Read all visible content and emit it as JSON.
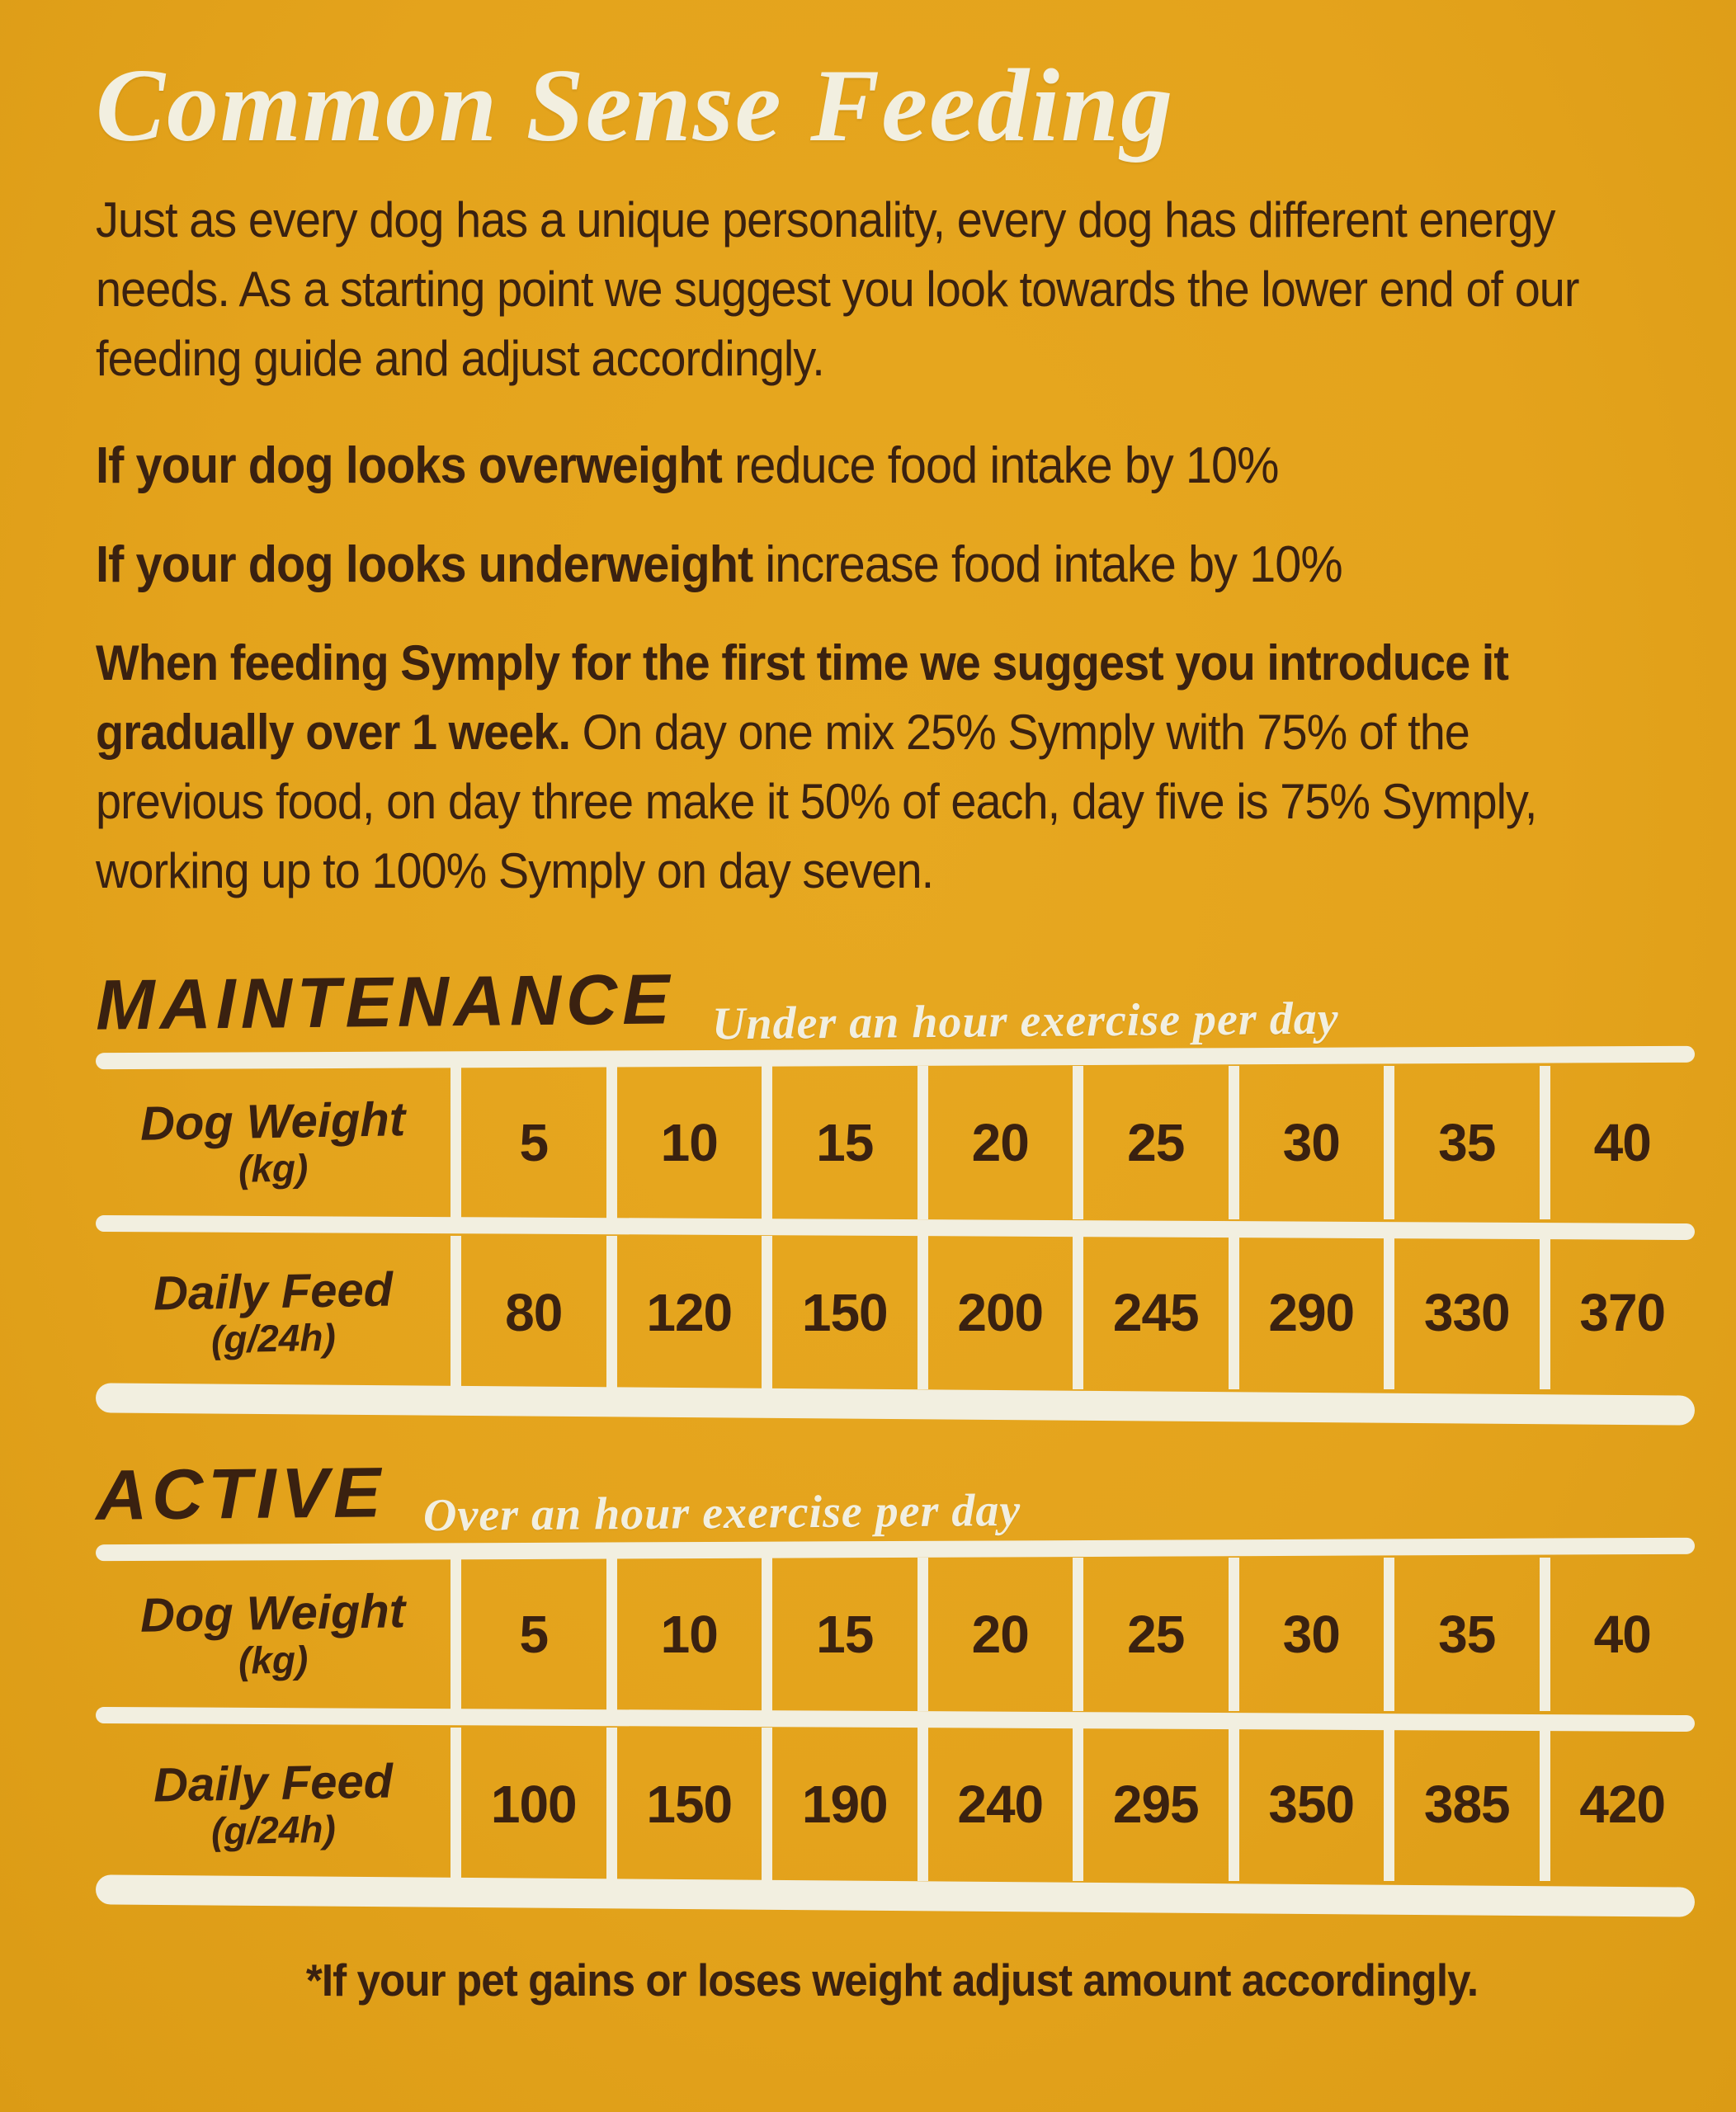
{
  "colors": {
    "background": "#E4A31C",
    "ink": "#3A2110",
    "white": "#F2EFE0"
  },
  "title": "Common Sense Feeding",
  "intro": "Just as every dog has a unique personality, every dog has different energy needs. As a starting point we suggest you look towards the lower end of our feeding guide and adjust accordingly.",
  "overweight": {
    "bold": "If your dog looks overweight",
    "rest": " reduce food intake by 10%"
  },
  "underweight": {
    "bold": "If your dog looks underweight",
    "rest": " increase food intake by 10%"
  },
  "transition": {
    "bold": "When feeding Symply for the first time we suggest you introduce it gradually over 1 week.",
    "rest": " On day one mix 25% Symply with 75% of the previous food, on day three make it 50% of each, day five is 75% Symply, working up to 100% Symply on day seven."
  },
  "tables": [
    {
      "heading": "MAINTENANCE",
      "subtitle": "Under an hour exercise per day",
      "weight_label": "Dog Weight",
      "weight_unit": "(kg)",
      "feed_label": "Daily Feed",
      "feed_unit": "(g/24h)",
      "weights": [
        "5",
        "10",
        "15",
        "20",
        "25",
        "30",
        "35",
        "40"
      ],
      "feeds": [
        "80",
        "120",
        "150",
        "200",
        "245",
        "290",
        "330",
        "370"
      ]
    },
    {
      "heading": "ACTIVE",
      "subtitle": "Over an hour exercise per day",
      "weight_label": "Dog Weight",
      "weight_unit": "(kg)",
      "feed_label": "Daily Feed",
      "feed_unit": "(g/24h)",
      "weights": [
        "5",
        "10",
        "15",
        "20",
        "25",
        "30",
        "35",
        "40"
      ],
      "feeds": [
        "100",
        "150",
        "190",
        "240",
        "295",
        "350",
        "385",
        "420"
      ]
    }
  ],
  "footnote": "*If your pet gains or loses weight adjust amount accordingly."
}
